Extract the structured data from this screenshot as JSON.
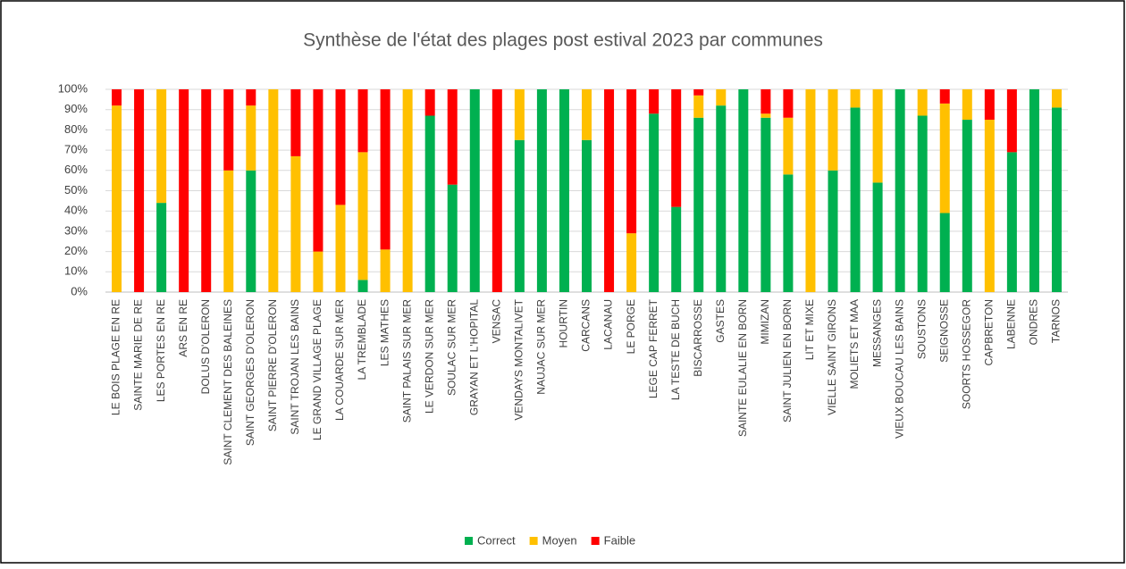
{
  "chart_data": {
    "type": "stacked_bar_100",
    "title": "Synthèse de l'état des plages post estival 2023 par communes",
    "categories": [
      "LE BOIS PLAGE EN RE",
      "SAINTE MARIE DE RE",
      "LES PORTES EN RE",
      "ARS EN RE",
      "DOLUS D'OLERON",
      "SAINT CLEMENT DES BALEINES",
      "SAINT GEORGES D'OLERON",
      "SAINT PIERRE D'OLERON",
      "SAINT TROJAN LES BAINS",
      "LE GRAND VILLAGE PLAGE",
      "LA COUARDE SUR MER",
      "LA TREMBLADE",
      "LES MATHES",
      "SAINT PALAIS SUR MER",
      "LE VERDON SUR MER",
      "SOULAC SUR MER",
      "GRAYAN ET L'HOPITAL",
      "VENSAC",
      "VENDAYS MONTALIVET",
      "NAUJAC SUR MER",
      "HOURTIN",
      "CARCANS",
      "LACANAU",
      "LE PORGE",
      "LEGE CAP FERRET",
      "LA TESTE DE BUCH",
      "BISCARROSSE",
      "GASTES",
      "SAINTE EULALIE EN BORN",
      "MIMIZAN",
      "SAINT JULIEN EN BORN",
      "LIT ET MIXE",
      "VIELLE SAINT GIRONS",
      "MOLIETS ET MAA",
      "MESSANGES",
      "VIEUX BOUCAU LES BAINS",
      "SOUSTONS",
      "SEIGNOSSE",
      "SOORTS HOSSEGOR",
      "CAPBRETON",
      "LABENNE",
      "ONDRES",
      "TARNOS"
    ],
    "series": [
      {
        "name": "Correct",
        "color": "#00b050",
        "values": [
          0,
          0,
          44,
          0,
          0,
          0,
          60,
          0,
          0,
          0,
          0,
          6,
          0,
          0,
          87,
          53,
          100,
          0,
          75,
          100,
          100,
          75,
          0,
          0,
          88,
          42,
          86,
          92,
          100,
          86,
          58,
          0,
          60,
          91,
          54,
          100,
          87,
          39,
          85,
          0,
          69,
          100,
          91
        ]
      },
      {
        "name": "Moyen",
        "color": "#ffc000",
        "values": [
          92,
          0,
          56,
          0,
          0,
          60,
          32,
          100,
          67,
          20,
          43,
          63,
          21,
          100,
          0,
          0,
          0,
          0,
          25,
          0,
          0,
          25,
          0,
          29,
          0,
          0,
          11,
          8,
          0,
          2,
          28,
          100,
          40,
          9,
          46,
          0,
          13,
          54,
          15,
          85,
          0,
          0,
          9
        ]
      },
      {
        "name": "Faible",
        "color": "#ff0000",
        "values": [
          8,
          100,
          0,
          100,
          100,
          40,
          8,
          0,
          33,
          80,
          57,
          31,
          79,
          0,
          13,
          47,
          0,
          100,
          0,
          0,
          0,
          0,
          100,
          71,
          12,
          58,
          3,
          0,
          0,
          12,
          14,
          0,
          0,
          0,
          0,
          0,
          0,
          7,
          0,
          15,
          31,
          0,
          0
        ]
      }
    ],
    "ylim": [
      0,
      100
    ],
    "yticks": [
      {
        "value": 0,
        "label": "0%"
      },
      {
        "value": 10,
        "label": "10%"
      },
      {
        "value": 20,
        "label": "20%"
      },
      {
        "value": 30,
        "label": "30%"
      },
      {
        "value": 40,
        "label": "40%"
      },
      {
        "value": 50,
        "label": "50%"
      },
      {
        "value": 60,
        "label": "60%"
      },
      {
        "value": 70,
        "label": "70%"
      },
      {
        "value": 80,
        "label": "80%"
      },
      {
        "value": 90,
        "label": "90%"
      },
      {
        "value": 100,
        "label": "100%"
      }
    ],
    "grid": true,
    "legend": "bottom"
  }
}
